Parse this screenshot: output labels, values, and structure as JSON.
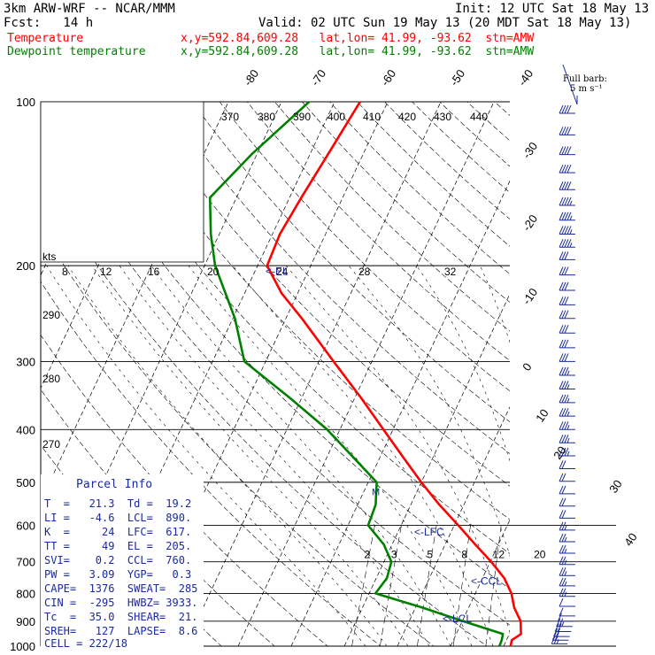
{
  "header": {
    "model": "3km ARW-WRF -- NCAR/MMM",
    "init": "Init: 12 UTC Sat 18 May 13",
    "fcst": "Fcst:   14 h",
    "valid": "Valid: 02 UTC Sun 19 May 13 (20 MDT Sat 18 May 13)",
    "temp_label": "Temperature",
    "temp_info": "x,y=592.84,609.28   lat,lon= 41.99, -93.62  stn=AMW",
    "dew_label": "Dewpoint temperature",
    "dew_info": "x,y=592.84,609.28   lat,lon= 41.99, -93.62  stn=AMW",
    "barb_title": "Full barb:",
    "barb_sub": "5 m s⁻¹"
  },
  "parcel_info": {
    "title": "Parcel Info",
    "rows": [
      "T  =   21.3  Td =  19.2",
      "LI =   -4.6  LCL=  890.",
      "K  =     24  LFC=  617.",
      "TT =     49  EL =  205.",
      "SVI=    0.2  CCL=  760.",
      "PW =   3.09  YGP=   0.3",
      "CAPE=  1376  SWEAT=  285",
      "CIN =  -295  HWBZ= 3933.",
      "Tc  =  35.0  SHEAR=  21.",
      "SREH=   127  LAPSE=  8.6",
      "CELL = 222/18"
    ]
  },
  "hodograph": {
    "kts_label": "kts",
    "ring_labels": [
      "8",
      "12",
      "16",
      "20",
      "24",
      "28",
      "32"
    ]
  },
  "chart_data": {
    "type": "line",
    "title": "3km ARW-WRF -- NCAR/MMM",
    "y_axis": {
      "label": "",
      "scale": "log-pressure",
      "ticks": [
        100,
        200,
        300,
        400,
        500,
        600,
        700,
        800,
        900,
        1000
      ],
      "ylim": [
        1000,
        100
      ]
    },
    "isotherm_labels": [
      "-80",
      "-70",
      "-60",
      "-50",
      "-40",
      "-30",
      "-20",
      "-10",
      "0",
      "10",
      "20",
      "30",
      "40"
    ],
    "theta_labels": [
      "370",
      "380",
      "390",
      "400",
      "410",
      "420",
      "430",
      "440"
    ],
    "mixing_ratio_labels": [
      "2",
      "3",
      "5",
      "8",
      "12",
      "20"
    ],
    "dry_adiabat_labels": [
      "290",
      "280",
      "270"
    ],
    "markers": [
      "<-EL",
      "<-LFC",
      "<-CCL",
      "<-LCL",
      "M"
    ],
    "colors": {
      "temperature": "#ff0000",
      "dewpoint": "#008000",
      "parcel": "#1a2a9e"
    },
    "series": [
      {
        "name": "Temperature",
        "points": [
          [
            1000,
            21.3
          ],
          [
            975,
            21.0
          ],
          [
            950,
            22.2
          ],
          [
            900,
            21.0
          ],
          [
            850,
            18.6
          ],
          [
            800,
            16.8
          ],
          [
            750,
            14.1
          ],
          [
            700,
            10.2
          ],
          [
            650,
            5.6
          ],
          [
            600,
            0.8
          ],
          [
            550,
            -4.6
          ],
          [
            500,
            -10.0
          ],
          [
            450,
            -15.6
          ],
          [
            400,
            -21.8
          ],
          [
            350,
            -28.8
          ],
          [
            300,
            -37.2
          ],
          [
            250,
            -47.0
          ],
          [
            225,
            -53.0
          ],
          [
            200,
            -58.2
          ],
          [
            175,
            -58.6
          ],
          [
            150,
            -57.8
          ],
          [
            125,
            -56.6
          ],
          [
            100,
            -55.2
          ]
        ]
      },
      {
        "name": "Dewpoint temperature",
        "points": [
          [
            1000,
            19.2
          ],
          [
            975,
            19.1
          ],
          [
            950,
            18.8
          ],
          [
            900,
            10.2
          ],
          [
            850,
            1.4
          ],
          [
            800,
            -8.8
          ],
          [
            750,
            -8.0
          ],
          [
            700,
            -8.6
          ],
          [
            650,
            -11.6
          ],
          [
            600,
            -16.2
          ],
          [
            550,
            -16.6
          ],
          [
            500,
            -18.4
          ],
          [
            450,
            -25.0
          ],
          [
            400,
            -32.4
          ],
          [
            350,
            -42.2
          ],
          [
            300,
            -54.0
          ],
          [
            250,
            -59.6
          ],
          [
            200,
            -68.0
          ],
          [
            175,
            -71.6
          ],
          [
            150,
            -75.0
          ],
          [
            125,
            -71.0
          ],
          [
            100,
            -64.8
          ]
        ]
      }
    ],
    "wind_barbs": {
      "pressures": [
        105,
        115,
        125,
        135,
        145,
        155,
        165,
        175,
        185,
        195,
        208,
        222,
        236,
        250,
        266,
        283,
        300,
        318,
        337,
        357,
        378,
        400,
        423,
        447,
        472,
        498,
        525,
        553,
        582,
        612,
        643,
        675,
        708,
        742,
        775,
        810,
        845,
        880,
        900,
        920,
        940,
        960,
        975,
        990
      ],
      "speeds_kt": [
        40,
        40,
        40,
        40,
        40,
        35,
        35,
        35,
        35,
        30,
        30,
        30,
        30,
        30,
        30,
        30,
        30,
        25,
        25,
        25,
        25,
        25,
        25,
        25,
        20,
        20,
        20,
        20,
        20,
        15,
        15,
        15,
        15,
        15,
        15,
        15,
        10,
        10,
        10,
        15,
        20,
        20,
        20,
        15
      ],
      "dirs_deg": [
        260,
        260,
        260,
        255,
        255,
        255,
        255,
        255,
        255,
        255,
        255,
        255,
        255,
        255,
        250,
        250,
        250,
        250,
        250,
        250,
        250,
        245,
        245,
        245,
        245,
        240,
        240,
        240,
        240,
        240,
        240,
        240,
        240,
        240,
        230,
        220,
        210,
        200,
        190,
        185,
        180,
        180,
        175,
        170
      ]
    }
  }
}
